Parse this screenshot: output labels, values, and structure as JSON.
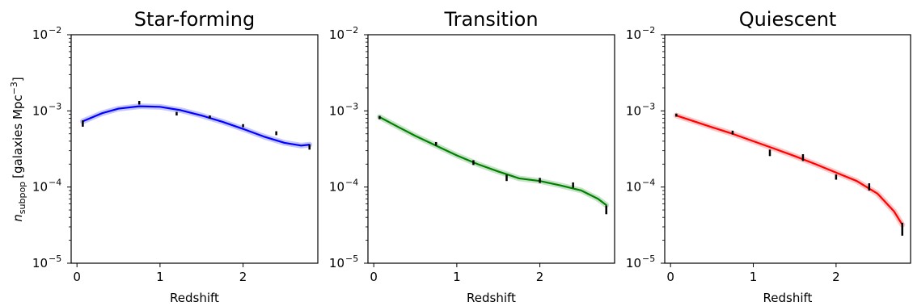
{
  "figure": {
    "ylabel_main": "n",
    "ylabel_sub": "subpop",
    "ylabel_rest": "[galaxies Mpc",
    "ylabel_sup": "−3",
    "ylabel_close": "]"
  },
  "chart_data": [
    {
      "type": "line",
      "title": "Star-forming",
      "xlabel": "Redshift",
      "ylabel": "n_subpop [galaxies Mpc^-3]",
      "yscale": "log",
      "xlim": [
        -0.07,
        2.9
      ],
      "ylim": [
        1e-05,
        0.01
      ],
      "xticks": [
        0,
        1,
        2
      ],
      "xtick_labels": [
        "0",
        "1",
        "2"
      ],
      "yticks": [
        1e-05,
        0.0001,
        0.001,
        0.01
      ],
      "ytick_labels": [
        {
          "base": "10",
          "exp": "−5"
        },
        {
          "base": "10",
          "exp": "−4"
        },
        {
          "base": "10",
          "exp": "−3"
        },
        {
          "base": "10",
          "exp": "−2"
        }
      ],
      "color": "#0000ff",
      "model_curve": {
        "x": [
          0.07,
          0.3,
          0.5,
          0.75,
          1.0,
          1.25,
          1.5,
          1.75,
          2.0,
          2.25,
          2.5,
          2.7,
          2.8
        ],
        "y": [
          0.00073,
          0.00093,
          0.00107,
          0.00115,
          0.00113,
          0.00102,
          0.00087,
          0.00072,
          0.00058,
          0.00046,
          0.00038,
          0.00035,
          0.00036
        ]
      },
      "data_points": [
        {
          "x": 0.07,
          "y": 0.00069,
          "ylo": 0.00062,
          "yhi": 0.00075
        },
        {
          "x": 0.75,
          "y": 0.00128,
          "ylo": 0.00121,
          "yhi": 0.00135
        },
        {
          "x": 1.2,
          "y": 0.00092,
          "ylo": 0.00087,
          "yhi": 0.00097
        },
        {
          "x": 1.6,
          "y": 0.00083,
          "ylo": 0.00079,
          "yhi": 0.00087
        },
        {
          "x": 2.0,
          "y": 0.00064,
          "ylo": 0.00061,
          "yhi": 0.00067
        },
        {
          "x": 2.4,
          "y": 0.00051,
          "ylo": 0.00048,
          "yhi": 0.00054
        },
        {
          "x": 2.8,
          "y": 0.00033,
          "ylo": 0.00031,
          "yhi": 0.00036
        }
      ]
    },
    {
      "type": "line",
      "title": "Transition",
      "xlabel": "Redshift",
      "yscale": "log",
      "xlim": [
        -0.07,
        2.9
      ],
      "ylim": [
        1e-05,
        0.01
      ],
      "xticks": [
        0,
        1,
        2
      ],
      "xtick_labels": [
        "0",
        "1",
        "2"
      ],
      "yticks": [
        1e-05,
        0.0001,
        0.001,
        0.01
      ],
      "ytick_labels": [
        {
          "base": "10",
          "exp": "−5"
        },
        {
          "base": "10",
          "exp": "−4"
        },
        {
          "base": "10",
          "exp": "−3"
        },
        {
          "base": "10",
          "exp": "−2"
        }
      ],
      "color": "#008000",
      "model_curve": {
        "x": [
          0.07,
          0.3,
          0.5,
          0.75,
          1.0,
          1.25,
          1.5,
          1.75,
          2.0,
          2.25,
          2.5,
          2.7,
          2.8
        ],
        "y": [
          0.00083,
          0.00061,
          0.00047,
          0.00035,
          0.00026,
          0.0002,
          0.00016,
          0.00013,
          0.00012,
          0.000105,
          9e-05,
          7e-05,
          5.8e-05
        ]
      },
      "data_points": [
        {
          "x": 0.07,
          "y": 0.00082,
          "ylo": 0.00078,
          "yhi": 0.00086
        },
        {
          "x": 0.75,
          "y": 0.00037,
          "ylo": 0.00035,
          "yhi": 0.00039
        },
        {
          "x": 1.2,
          "y": 0.00021,
          "ylo": 0.000195,
          "yhi": 0.000225
        },
        {
          "x": 1.6,
          "y": 0.000132,
          "ylo": 0.00012,
          "yhi": 0.000145
        },
        {
          "x": 2.0,
          "y": 0.000122,
          "ylo": 0.000113,
          "yhi": 0.000132
        },
        {
          "x": 2.4,
          "y": 0.000106,
          "ylo": 9.8e-05,
          "yhi": 0.000115
        },
        {
          "x": 2.8,
          "y": 5e-05,
          "ylo": 4.4e-05,
          "yhi": 5.7e-05
        }
      ]
    },
    {
      "type": "line",
      "title": "Quiescent",
      "xlabel": "Redshift",
      "yscale": "log",
      "xlim": [
        -0.07,
        2.9
      ],
      "ylim": [
        1e-05,
        0.01
      ],
      "xticks": [
        0,
        1,
        2
      ],
      "xtick_labels": [
        "0",
        "1",
        "2"
      ],
      "yticks": [
        1e-05,
        0.0001,
        0.001,
        0.01
      ],
      "ytick_labels": [
        {
          "base": "10",
          "exp": "−5"
        },
        {
          "base": "10",
          "exp": "−4"
        },
        {
          "base": "10",
          "exp": "−3"
        },
        {
          "base": "10",
          "exp": "−2"
        }
      ],
      "color": "#ff0000",
      "model_curve": {
        "x": [
          0.07,
          0.3,
          0.5,
          0.75,
          1.0,
          1.25,
          1.5,
          1.75,
          2.0,
          2.25,
          2.5,
          2.7,
          2.8
        ],
        "y": [
          0.00087,
          0.00072,
          0.00061,
          0.0005,
          0.0004,
          0.00032,
          0.000255,
          0.0002,
          0.000155,
          0.00012,
          8.2e-05,
          4.8e-05,
          3.2e-05
        ]
      },
      "data_points": [
        {
          "x": 0.07,
          "y": 0.00088,
          "ylo": 0.00084,
          "yhi": 0.00092
        },
        {
          "x": 0.75,
          "y": 0.00052,
          "ylo": 0.00049,
          "yhi": 0.00055
        },
        {
          "x": 1.2,
          "y": 0.00028,
          "ylo": 0.000255,
          "yhi": 0.00031
        },
        {
          "x": 1.6,
          "y": 0.000245,
          "ylo": 0.00022,
          "yhi": 0.00027
        },
        {
          "x": 2.0,
          "y": 0.000135,
          "ylo": 0.000125,
          "yhi": 0.000146
        },
        {
          "x": 2.4,
          "y": 0.0001,
          "ylo": 9e-05,
          "yhi": 0.000112
        },
        {
          "x": 2.8,
          "y": 2.8e-05,
          "ylo": 2.3e-05,
          "yhi": 3.4e-05
        }
      ]
    }
  ]
}
